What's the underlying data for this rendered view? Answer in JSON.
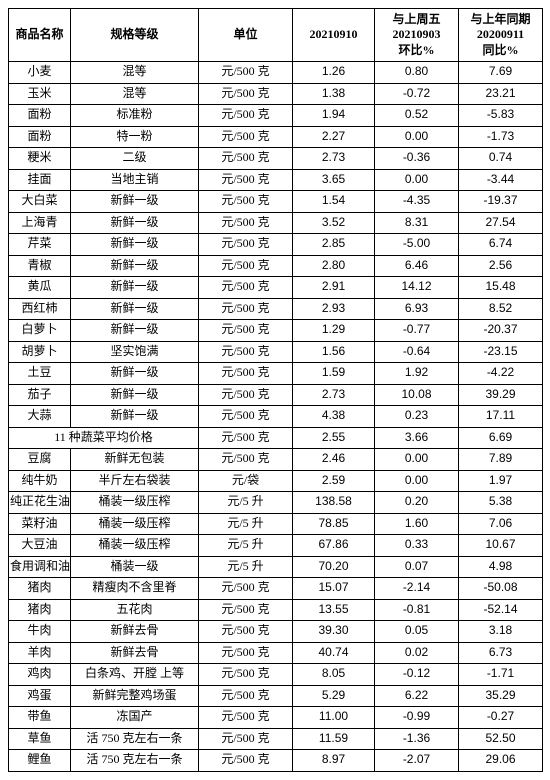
{
  "columns": [
    {
      "key": "name",
      "label": "商品名称"
    },
    {
      "key": "spec",
      "label": "规格等级"
    },
    {
      "key": "unit",
      "label": "单位"
    },
    {
      "key": "price",
      "label": "20210910"
    },
    {
      "key": "wow",
      "label": "与上周五\n20210903\n环比%"
    },
    {
      "key": "yoy",
      "label": "与上年同期\n20200911\n同比%"
    }
  ],
  "rows": [
    {
      "name": "小麦",
      "spec": "混等",
      "unit": "元/500 克",
      "price": "1.26",
      "wow": "0.80",
      "yoy": "7.69"
    },
    {
      "name": "玉米",
      "spec": "混等",
      "unit": "元/500 克",
      "price": "1.38",
      "wow": "-0.72",
      "yoy": "23.21"
    },
    {
      "name": "面粉",
      "spec": "标准粉",
      "unit": "元/500 克",
      "price": "1.94",
      "wow": "0.52",
      "yoy": "-5.83"
    },
    {
      "name": "面粉",
      "spec": "特一粉",
      "unit": "元/500 克",
      "price": "2.27",
      "wow": "0.00",
      "yoy": "-1.73"
    },
    {
      "name": "粳米",
      "spec": "二级",
      "unit": "元/500 克",
      "price": "2.73",
      "wow": "-0.36",
      "yoy": "0.74"
    },
    {
      "name": "挂面",
      "spec": "当地主销",
      "unit": "元/500 克",
      "price": "3.65",
      "wow": "0.00",
      "yoy": "-3.44"
    },
    {
      "name": "大白菜",
      "spec": "新鲜一级",
      "unit": "元/500 克",
      "price": "1.54",
      "wow": "-4.35",
      "yoy": "-19.37"
    },
    {
      "name": "上海青",
      "spec": "新鲜一级",
      "unit": "元/500 克",
      "price": "3.52",
      "wow": "8.31",
      "yoy": "27.54"
    },
    {
      "name": "芹菜",
      "spec": "新鲜一级",
      "unit": "元/500 克",
      "price": "2.85",
      "wow": "-5.00",
      "yoy": "6.74"
    },
    {
      "name": "青椒",
      "spec": "新鲜一级",
      "unit": "元/500 克",
      "price": "2.80",
      "wow": "6.46",
      "yoy": "2.56"
    },
    {
      "name": "黄瓜",
      "spec": "新鲜一级",
      "unit": "元/500 克",
      "price": "2.91",
      "wow": "14.12",
      "yoy": "15.48"
    },
    {
      "name": "西红柿",
      "spec": "新鲜一级",
      "unit": "元/500 克",
      "price": "2.93",
      "wow": "6.93",
      "yoy": "8.52"
    },
    {
      "name": "白萝卜",
      "spec": "新鲜一级",
      "unit": "元/500 克",
      "price": "1.29",
      "wow": "-0.77",
      "yoy": "-20.37"
    },
    {
      "name": "胡萝卜",
      "spec": "坚实饱满",
      "unit": "元/500 克",
      "price": "1.56",
      "wow": "-0.64",
      "yoy": "-23.15"
    },
    {
      "name": "土豆",
      "spec": "新鲜一级",
      "unit": "元/500 克",
      "price": "1.59",
      "wow": "1.92",
      "yoy": "-4.22"
    },
    {
      "name": "茄子",
      "spec": "新鲜一级",
      "unit": "元/500 克",
      "price": "2.73",
      "wow": "10.08",
      "yoy": "39.29"
    },
    {
      "name": "大蒜",
      "spec": "新鲜一级",
      "unit": "元/500 克",
      "price": "4.38",
      "wow": "0.23",
      "yoy": "17.11"
    },
    {
      "merged": true,
      "merged_label": "11 种蔬菜平均价格",
      "unit": "元/500 克",
      "price": "2.55",
      "wow": "3.66",
      "yoy": "6.69"
    },
    {
      "name": "豆腐",
      "spec": "新鲜无包装",
      "unit": "元/500 克",
      "price": "2.46",
      "wow": "0.00",
      "yoy": "7.89"
    },
    {
      "name": "纯牛奶",
      "spec": "半斤左右袋装",
      "unit": "元/袋",
      "price": "2.59",
      "wow": "0.00",
      "yoy": "1.97"
    },
    {
      "name": "纯正花生油",
      "spec": "桶装一级压榨",
      "unit": "元/5 升",
      "price": "138.58",
      "wow": "0.20",
      "yoy": "5.38"
    },
    {
      "name": "菜籽油",
      "spec": "桶装一级压榨",
      "unit": "元/5 升",
      "price": "78.85",
      "wow": "1.60",
      "yoy": "7.06"
    },
    {
      "name": "大豆油",
      "spec": "桶装一级压榨",
      "unit": "元/5 升",
      "price": "67.86",
      "wow": "0.33",
      "yoy": "10.67"
    },
    {
      "name": "食用调和油",
      "spec": "桶装一级",
      "unit": "元/5 升",
      "price": "70.20",
      "wow": "0.07",
      "yoy": "4.98"
    },
    {
      "name": "猪肉",
      "spec": "精瘦肉不含里脊",
      "unit": "元/500 克",
      "price": "15.07",
      "wow": "-2.14",
      "yoy": "-50.08"
    },
    {
      "name": "猪肉",
      "spec": "五花肉",
      "unit": "元/500 克",
      "price": "13.55",
      "wow": "-0.81",
      "yoy": "-52.14"
    },
    {
      "name": "牛肉",
      "spec": "新鲜去骨",
      "unit": "元/500 克",
      "price": "39.30",
      "wow": "0.05",
      "yoy": "3.18"
    },
    {
      "name": "羊肉",
      "spec": "新鲜去骨",
      "unit": "元/500 克",
      "price": "40.74",
      "wow": "0.02",
      "yoy": "6.73"
    },
    {
      "name": "鸡肉",
      "spec": "白条鸡、开膛 上等",
      "unit": "元/500 克",
      "price": "8.05",
      "wow": "-0.12",
      "yoy": "-1.71"
    },
    {
      "name": "鸡蛋",
      "spec": "新鲜完整鸡场蛋",
      "unit": "元/500 克",
      "price": "5.29",
      "wow": "6.22",
      "yoy": "35.29"
    },
    {
      "name": "带鱼",
      "spec": "冻国产",
      "unit": "元/500 克",
      "price": "11.00",
      "wow": "-0.99",
      "yoy": "-0.27"
    },
    {
      "name": "草鱼",
      "spec": "活 750 克左右一条",
      "unit": "元/500 克",
      "price": "11.59",
      "wow": "-1.36",
      "yoy": "52.50"
    },
    {
      "name": "鲤鱼",
      "spec": "活 750 克左右一条",
      "unit": "元/500 克",
      "price": "8.97",
      "wow": "-2.07",
      "yoy": "29.06"
    }
  ]
}
